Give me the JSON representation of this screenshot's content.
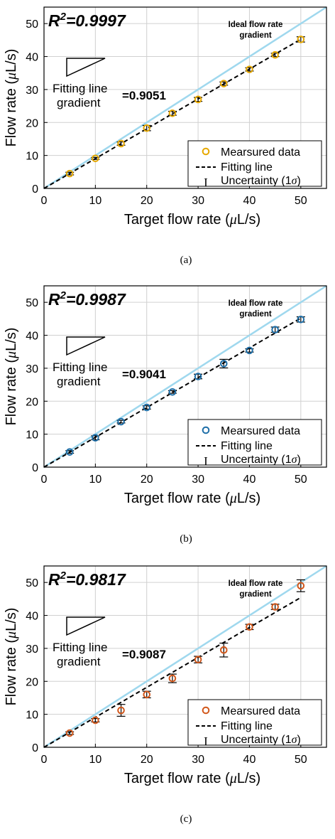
{
  "figure": {
    "sub_labels": [
      "(a)",
      "(b)",
      "(c)"
    ]
  },
  "legend_symbols": {
    "uncertainty": "I"
  },
  "chart_data": [
    {
      "type": "scatter",
      "panel_label": "(a)",
      "r2_label": "R",
      "r2_sup": "2",
      "r2_value": "=0.9997",
      "xlabel": "Target flow rate (",
      "xlabel_mu": "μ",
      "xlabel_unit": "L/s)",
      "ylabel": "Flow rate (",
      "ylabel_mu": "μ",
      "ylabel_unit": "L/s)",
      "xlim": [
        0,
        55
      ],
      "ylim": [
        0,
        55
      ],
      "xticks": [
        0,
        10,
        20,
        30,
        40,
        50
      ],
      "yticks": [
        0,
        10,
        20,
        30,
        40,
        50
      ],
      "grid": true,
      "ideal_label_line1": "Ideal flow rate",
      "ideal_label_line2": "gradient",
      "fitting_label_line1": "Fitting line",
      "fitting_label_line2": "gradient",
      "fitting_gradient": "=0.9051",
      "fitting_slope": 0.9051,
      "legend": {
        "placement": "bottom-right",
        "entries": [
          "Mearsured data",
          "Fitting line",
          "Uncertainty (1",
          "σ",
          ")"
        ]
      },
      "marker_color": "#e6a800",
      "ideal_color": "#9fd8ee",
      "points": [
        {
          "x": 5,
          "y": 4.5,
          "err": 0.4
        },
        {
          "x": 10,
          "y": 9.1,
          "err": 0.3
        },
        {
          "x": 15,
          "y": 13.6,
          "err": 0.5
        },
        {
          "x": 20,
          "y": 18.3,
          "err": 0.8
        },
        {
          "x": 25,
          "y": 22.8,
          "err": 0.6
        },
        {
          "x": 30,
          "y": 27.0,
          "err": 0.6
        },
        {
          "x": 35,
          "y": 31.8,
          "err": 0.5
        },
        {
          "x": 40,
          "y": 36.1,
          "err": 0.5
        },
        {
          "x": 45,
          "y": 40.5,
          "err": 0.5
        },
        {
          "x": 50,
          "y": 45.2,
          "err": 0.8
        }
      ]
    },
    {
      "type": "scatter",
      "panel_label": "(b)",
      "r2_label": "R",
      "r2_sup": "2",
      "r2_value": "=0.9987",
      "xlabel": "Target flow rate (",
      "xlabel_mu": "μ",
      "xlabel_unit": "L/s)",
      "ylabel": "Flow rate (",
      "ylabel_mu": "μ",
      "ylabel_unit": "L/s)",
      "xlim": [
        0,
        55
      ],
      "ylim": [
        0,
        55
      ],
      "xticks": [
        0,
        10,
        20,
        30,
        40,
        50
      ],
      "yticks": [
        0,
        10,
        20,
        30,
        40,
        50
      ],
      "grid": true,
      "ideal_label_line1": "Ideal flow rate",
      "ideal_label_line2": "gradient",
      "fitting_label_line1": "Fitting line",
      "fitting_label_line2": "gradient",
      "fitting_gradient": "=0.9041",
      "fitting_slope": 0.9041,
      "legend": {
        "placement": "bottom-right",
        "entries": [
          "Mearsured data",
          "Fitting line",
          "Uncertainty (1",
          "σ",
          ")"
        ]
      },
      "marker_color": "#1f6fa8",
      "ideal_color": "#9fd8ee",
      "points": [
        {
          "x": 5,
          "y": 4.6,
          "err": 0.4
        },
        {
          "x": 10,
          "y": 8.9,
          "err": 0.6
        },
        {
          "x": 15,
          "y": 13.8,
          "err": 0.4
        },
        {
          "x": 20,
          "y": 18.1,
          "err": 0.5
        },
        {
          "x": 25,
          "y": 22.8,
          "err": 0.4
        },
        {
          "x": 30,
          "y": 27.5,
          "err": 0.7
        },
        {
          "x": 35,
          "y": 31.4,
          "err": 1.3
        },
        {
          "x": 40,
          "y": 35.4,
          "err": 0.5
        },
        {
          "x": 45,
          "y": 41.7,
          "err": 0.8
        },
        {
          "x": 50,
          "y": 44.8,
          "err": 0.8
        }
      ]
    },
    {
      "type": "scatter",
      "panel_label": "(c)",
      "r2_label": "R",
      "r2_sup": "2",
      "r2_value": "=0.9817",
      "xlabel": "Target flow rate (",
      "xlabel_mu": "μ",
      "xlabel_unit": "L/s)",
      "ylabel": "Flow rate (",
      "ylabel_mu": "μ",
      "ylabel_unit": "L/s)",
      "xlim": [
        0,
        55
      ],
      "ylim": [
        0,
        55
      ],
      "xticks": [
        0,
        10,
        20,
        30,
        40,
        50
      ],
      "yticks": [
        0,
        10,
        20,
        30,
        40,
        50
      ],
      "grid": true,
      "ideal_label_line1": "Ideal flow rate",
      "ideal_label_line2": "gradient",
      "fitting_label_line1": "Fitting line",
      "fitting_label_line2": "gradient",
      "fitting_gradient": "=0.9087",
      "fitting_slope": 0.9087,
      "legend": {
        "placement": "bottom-right",
        "entries": [
          "Mearsured data",
          "Fitting line",
          "Uncertainty (1",
          "σ",
          ")"
        ]
      },
      "marker_color": "#d2581c",
      "ideal_color": "#9fd8ee",
      "points": [
        {
          "x": 5,
          "y": 4.3,
          "err": 0.4
        },
        {
          "x": 10,
          "y": 8.2,
          "err": 0.5
        },
        {
          "x": 15,
          "y": 11.2,
          "err": 1.8
        },
        {
          "x": 20,
          "y": 16.0,
          "err": 1.0
        },
        {
          "x": 25,
          "y": 20.9,
          "err": 1.3
        },
        {
          "x": 30,
          "y": 26.6,
          "err": 1.0
        },
        {
          "x": 35,
          "y": 29.5,
          "err": 2.1
        },
        {
          "x": 40,
          "y": 36.5,
          "err": 0.8
        },
        {
          "x": 45,
          "y": 42.6,
          "err": 0.8
        },
        {
          "x": 50,
          "y": 49.0,
          "err": 1.8
        }
      ]
    }
  ]
}
